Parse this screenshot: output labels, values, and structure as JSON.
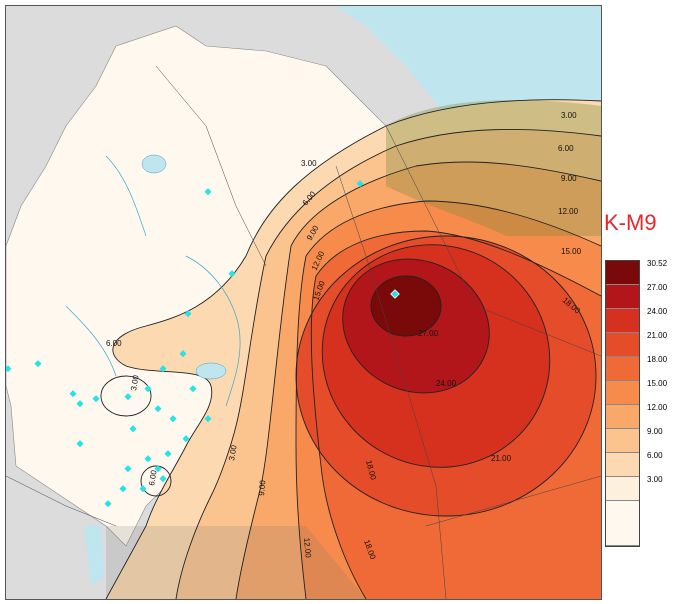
{
  "model_label": "K-M9",
  "legend": {
    "items": [
      {
        "label": "30.52",
        "color": "#7a0a0a"
      },
      {
        "label": "27.00",
        "color": "#b3161a"
      },
      {
        "label": "24.00",
        "color": "#d6301f"
      },
      {
        "label": "21.00",
        "color": "#e54c2a"
      },
      {
        "label": "18.00",
        "color": "#ef6a37"
      },
      {
        "label": "15.00",
        "color": "#f78b4b"
      },
      {
        "label": "12.00",
        "color": "#f9a86a"
      },
      {
        "label": "9.00",
        "color": "#fbc48f"
      },
      {
        "label": "6.00",
        "color": "#fcd9b0"
      },
      {
        "label": "3.00",
        "color": "#fdf0dd"
      },
      {
        "label": "",
        "color": "#fff8ef"
      }
    ]
  },
  "contour_labels": [
    "3.00",
    "6.00",
    "9.00",
    "12.00",
    "15.00",
    "18.00",
    "21.00",
    "24.00",
    "27.00",
    "3.00",
    "6.00",
    "9.00",
    "12.00",
    "15.00",
    "18.00",
    "21.00",
    "24.00",
    "3.00",
    "6.00",
    "3.00",
    "6.00",
    "9.00",
    "12.00",
    "18.00"
  ],
  "colors": {
    "land": "#fff8ef",
    "outside_land": "#d9d9d9",
    "water": "#bfe6ee",
    "station_marker": "#27e3e8"
  }
}
